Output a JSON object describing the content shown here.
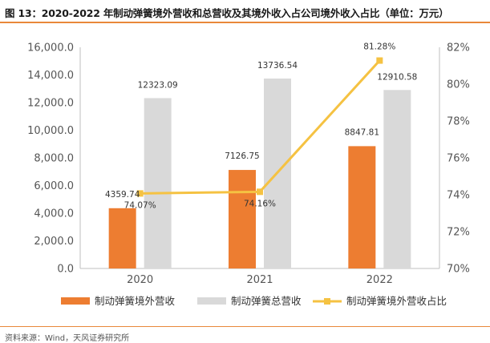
{
  "title": "图 13：2020-2022 年制动弹簧境外营收和总营收及其境外收入占公司境外收入占比（单位：万元）",
  "source": "资料来源：Wind，天风证券研究所",
  "colors": {
    "accent": "#e9883a",
    "overseas": "#ed7d31",
    "total": "#d9d9d9",
    "ratio": "#f5c242"
  },
  "chart_data": {
    "type": "bar",
    "categories": [
      "2020",
      "2021",
      "2022"
    ],
    "series": [
      {
        "name": "制动弹簧境外营收",
        "type": "bar",
        "axis": "left",
        "values": [
          4359.74,
          7126.75,
          8847.81
        ],
        "labels": [
          "4359.74",
          "7126.75",
          "8847.81"
        ]
      },
      {
        "name": "制动弹簧总营收",
        "type": "bar",
        "axis": "left",
        "values": [
          12323.09,
          13736.54,
          12910.58
        ],
        "labels": [
          "12323.09",
          "13736.54",
          "12910.58"
        ]
      },
      {
        "name": "制动弹簧境外营收占比",
        "type": "line",
        "axis": "right",
        "values": [
          74.07,
          74.16,
          81.28
        ],
        "labels": [
          "74.07%",
          "74.16%",
          "81.28%"
        ]
      }
    ],
    "y_left": {
      "min": 0,
      "max": 16000,
      "step": 2000,
      "tick_labels": [
        "0.0",
        "2,000.0",
        "4,000.0",
        "6,000.0",
        "8,000.0",
        "10,000.0",
        "12,000.0",
        "14,000.0",
        "16,000.0"
      ]
    },
    "y_right": {
      "min": 70,
      "max": 82,
      "step": 2,
      "tick_labels": [
        "70%",
        "72%",
        "74%",
        "76%",
        "78%",
        "80%",
        "82%"
      ]
    },
    "grid": false,
    "legend_position": "bottom"
  }
}
